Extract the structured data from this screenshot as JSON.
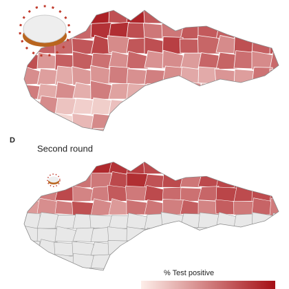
{
  "panel_label": "D",
  "subtitle": "Second round",
  "legend_title": "% Test positive"
}
